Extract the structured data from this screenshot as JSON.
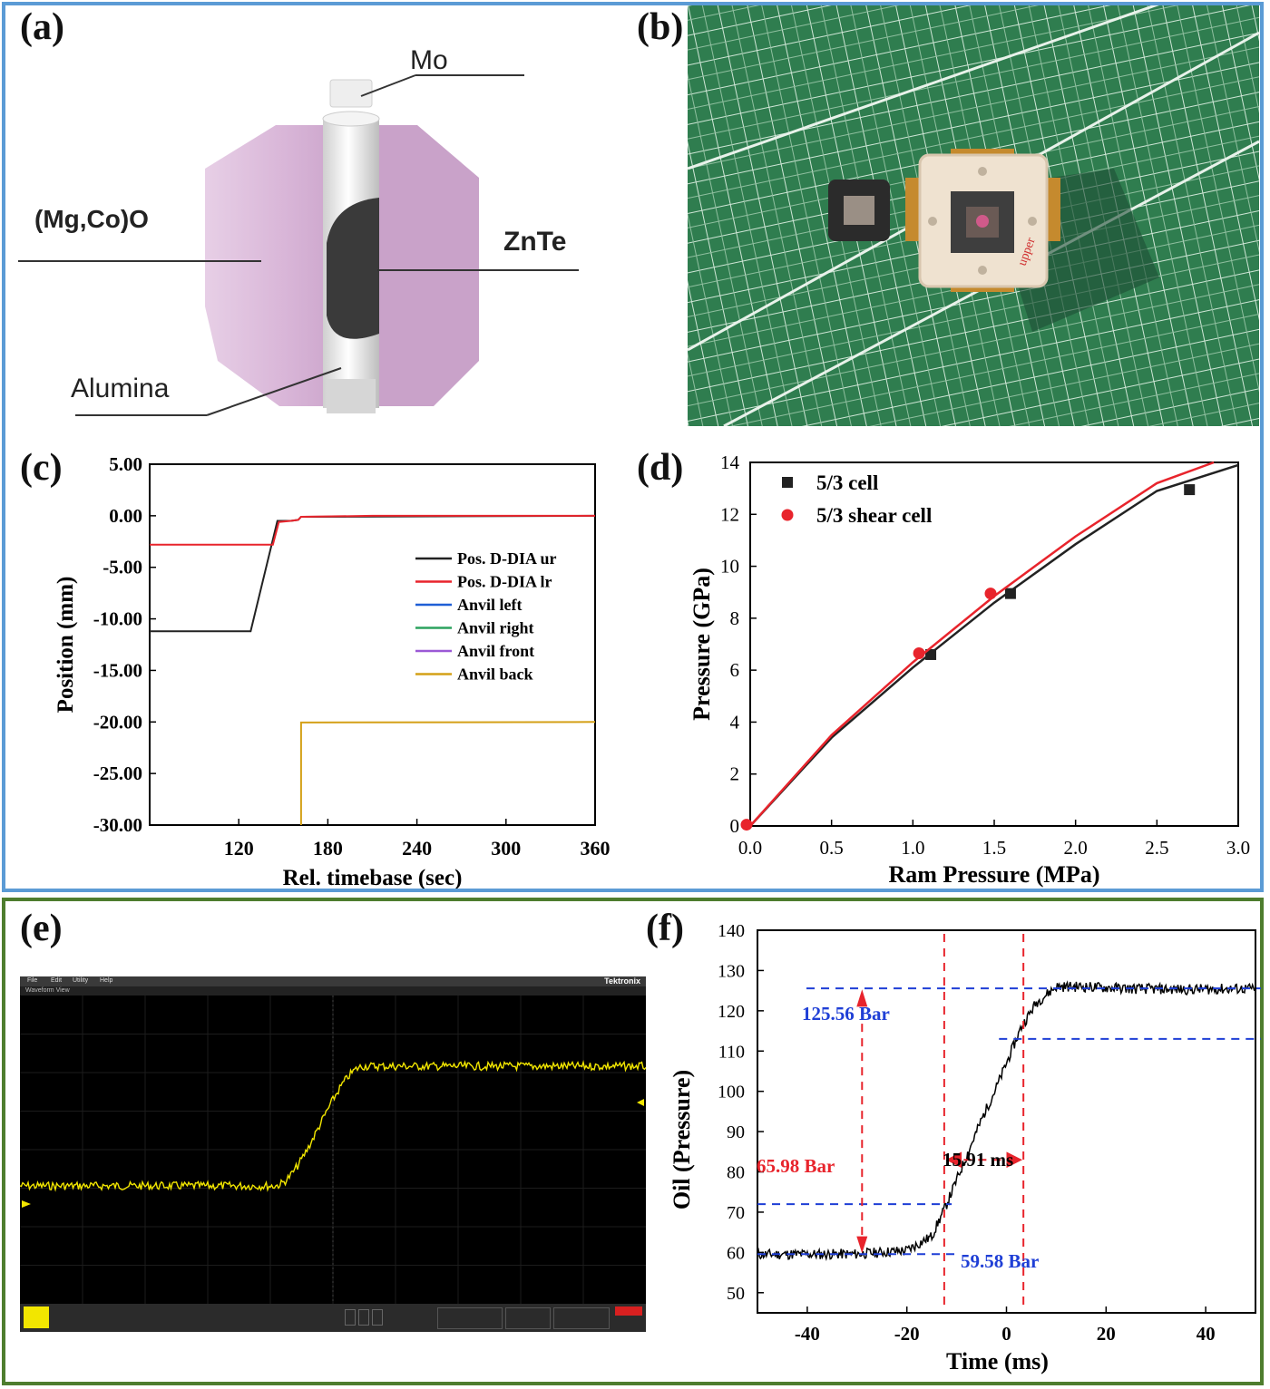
{
  "panels": {
    "a": {
      "label": "(a)",
      "annotations": {
        "mo": "Mo",
        "mgco": "(Mg,Co)O",
        "znte": "ZnTe",
        "alumina": "Alumina"
      }
    },
    "b": {
      "label": "(b)",
      "handwriting": "upper"
    },
    "c": {
      "label": "(c)"
    },
    "d": {
      "label": "(d)"
    },
    "e": {
      "label": "(e)",
      "scope": {
        "menu": [
          "File",
          "Edit",
          "Utility",
          "Help"
        ],
        "brand": "Tektronix",
        "view_title": "Waveform View"
      }
    },
    "f": {
      "label": "(f)",
      "annotations": {
        "high": "125.56 Bar",
        "low": "59.58 Bar",
        "delta": "65.98 Bar",
        "duration": "15.91 ms"
      }
    }
  },
  "colors": {
    "frame_top": "#5b9bd5",
    "frame_bottom": "#4e7d2e",
    "ur": "#222222",
    "lr": "#e8242c",
    "anvil_left": "#1f5fd6",
    "anvil_right": "#2ca25f",
    "anvil_front": "#9b59d6",
    "anvil_back": "#d4a017",
    "scope_trace": "#f2e600",
    "annot_red": "#e8242c",
    "annot_blue": "#1f3fd6"
  },
  "chart_data": [
    {
      "id": "c",
      "type": "line",
      "xlabel": "Rel. timebase (sec)",
      "ylabel": "Position (mm)",
      "xticks": [
        120,
        180,
        240,
        300,
        360
      ],
      "yticks": [
        "5.00",
        "0.00",
        "-5.00",
        "-10.00",
        "-15.00",
        "-20.00",
        "-25.00",
        "-30.00"
      ],
      "xlim": [
        60,
        360
      ],
      "ylim": [
        -30,
        5
      ],
      "legend_position": "right",
      "series": [
        {
          "name": "Pos. D-DIA ur",
          "points": [
            [
              60,
              -11.2
            ],
            [
              128,
              -11.2
            ],
            [
              146,
              -0.5
            ],
            [
              155,
              -0.5
            ],
            [
              160,
              -0.4
            ],
            [
              162,
              -0.1
            ],
            [
              360,
              0.0
            ]
          ]
        },
        {
          "name": "Pos. D-DIA lr",
          "points": [
            [
              60,
              -2.8
            ],
            [
              143,
              -2.8
            ],
            [
              147,
              -0.6
            ],
            [
              155,
              -0.5
            ],
            [
              160,
              -0.4
            ],
            [
              162,
              -0.1
            ],
            [
              210,
              0.0
            ],
            [
              360,
              0.0
            ]
          ]
        },
        {
          "name": "Anvil left",
          "points": []
        },
        {
          "name": "Anvil right",
          "points": []
        },
        {
          "name": "Anvil front",
          "points": []
        },
        {
          "name": "Anvil back",
          "points": [
            [
              162,
              -30
            ],
            [
              162,
              -20.05
            ],
            [
              360,
              -20.0
            ]
          ]
        }
      ]
    },
    {
      "id": "d",
      "type": "scatter",
      "xlabel": "Ram Pressure (MPa)",
      "ylabel": "Pressure (GPa)",
      "xticks": [
        "0.0",
        "0.5",
        "1.0",
        "1.5",
        "2.0",
        "2.5",
        "3.0"
      ],
      "yticks": [
        "0",
        "2",
        "4",
        "6",
        "8",
        "10",
        "12",
        "14"
      ],
      "xlim": [
        0,
        3
      ],
      "ylim": [
        0,
        14
      ],
      "legend_position": "top-left",
      "series": [
        {
          "name": "5/3 cell",
          "marker": "square",
          "points": [
            [
              1.11,
              6.6
            ],
            [
              1.6,
              8.95
            ],
            [
              2.7,
              12.95
            ]
          ],
          "fit": [
            [
              0,
              0
            ],
            [
              0.5,
              3.4
            ],
            [
              1.0,
              6.1
            ],
            [
              1.5,
              8.6
            ],
            [
              2.0,
              10.85
            ],
            [
              2.5,
              12.9
            ],
            [
              3.0,
              13.9
            ]
          ]
        },
        {
          "name": "5/3 shear cell",
          "marker": "circle",
          "points": [
            [
              0,
              0.05
            ],
            [
              1.06,
              6.65
            ],
            [
              1.5,
              8.95
            ]
          ],
          "fit": [
            [
              0,
              0
            ],
            [
              0.5,
              3.5
            ],
            [
              1.0,
              6.3
            ],
            [
              1.5,
              8.85
            ],
            [
              2.0,
              11.15
            ],
            [
              2.5,
              13.2
            ],
            [
              2.85,
              14.0
            ]
          ]
        }
      ]
    },
    {
      "id": "f",
      "type": "line",
      "xlabel": "Time (ms)",
      "ylabel": "Oil (Pressure)",
      "xticks": [
        -40,
        -20,
        0,
        20,
        40
      ],
      "yticks": [
        50,
        60,
        70,
        80,
        90,
        100,
        110,
        120,
        130,
        140
      ],
      "xlim": [
        -50,
        50
      ],
      "ylim": [
        45,
        140
      ],
      "series": [
        {
          "name": "",
          "points": [
            [
              -50,
              59.5
            ],
            [
              -30,
              59.6
            ],
            [
              -20,
              60.5
            ],
            [
              -15,
              64
            ],
            [
              -12,
              72
            ],
            [
              -8,
              84
            ],
            [
              -5,
              93
            ],
            [
              -2,
              101
            ],
            [
              1,
              110
            ],
            [
              3,
              116
            ],
            [
              6,
              122
            ],
            [
              10,
              126
            ],
            [
              15,
              126
            ],
            [
              25,
              125.5
            ],
            [
              35,
              125.3
            ],
            [
              50,
              125.5
            ]
          ]
        }
      ]
    }
  ]
}
